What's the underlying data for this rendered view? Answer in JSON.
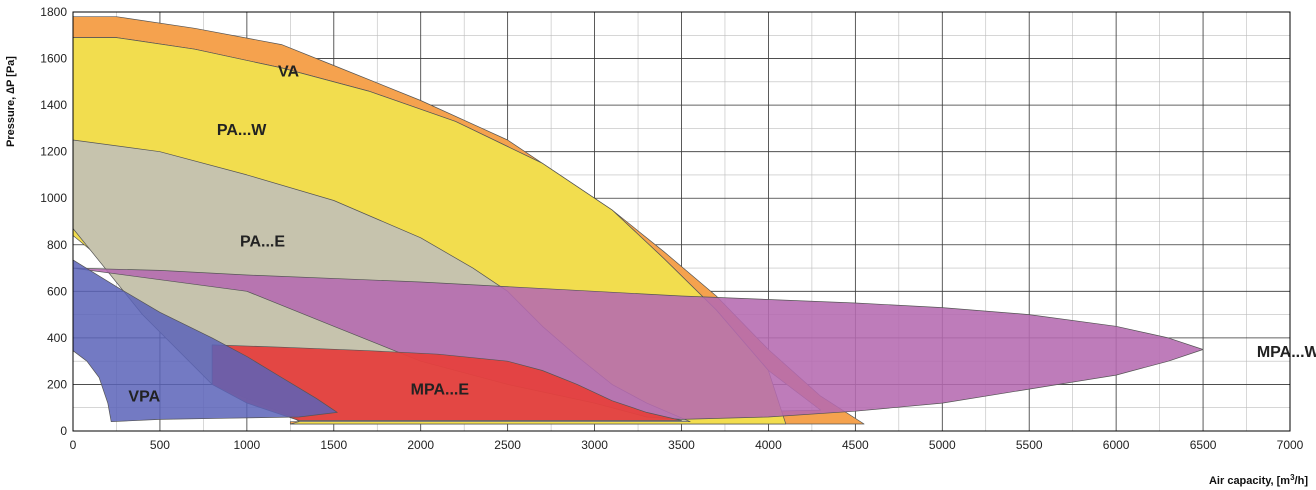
{
  "chart_data": {
    "type": "area",
    "ylabel": "Pressure, ∆P [Pa]",
    "xlabel": "Air capacity, [m³/h]",
    "xlim": [
      0,
      7000
    ],
    "ylim": [
      0,
      1800
    ],
    "x_ticks": [
      0,
      500,
      1000,
      1500,
      2000,
      2500,
      3000,
      3500,
      4000,
      4500,
      5000,
      5500,
      6000,
      6500,
      7000
    ],
    "y_ticks": [
      0,
      200,
      400,
      600,
      800,
      1000,
      1200,
      1400,
      1600,
      1800
    ],
    "x_minor_step": 250,
    "y_minor_step": 100,
    "grid": true,
    "legend": "none",
    "series": [
      {
        "name": "VA",
        "color": "#f5a24e",
        "opacity": 1,
        "label_at": [
          1240,
          1540
        ],
        "points": [
          [
            0,
            1780
          ],
          [
            250,
            1780
          ],
          [
            700,
            1730
          ],
          [
            1200,
            1660
          ],
          [
            1500,
            1570
          ],
          [
            2000,
            1420
          ],
          [
            2500,
            1250
          ],
          [
            2800,
            1100
          ],
          [
            3100,
            950
          ],
          [
            3400,
            770
          ],
          [
            3700,
            580
          ],
          [
            4000,
            350
          ],
          [
            4300,
            150
          ],
          [
            4550,
            30
          ],
          [
            1250,
            30
          ],
          [
            1250,
            40
          ],
          [
            4300,
            90
          ],
          [
            4000,
            260
          ],
          [
            3700,
            520
          ],
          [
            3400,
            740
          ],
          [
            3100,
            950
          ],
          [
            2700,
            1150
          ],
          [
            2200,
            1330
          ],
          [
            1700,
            1460
          ],
          [
            1200,
            1560
          ],
          [
            700,
            1640
          ],
          [
            250,
            1690
          ],
          [
            0,
            1690
          ]
        ]
      },
      {
        "name": "PA...W",
        "color": "#f2dd4e",
        "opacity": 1,
        "label_at": [
          970,
          1290
        ],
        "points": [
          [
            0,
            1690
          ],
          [
            250,
            1690
          ],
          [
            700,
            1640
          ],
          [
            1200,
            1560
          ],
          [
            1700,
            1460
          ],
          [
            2200,
            1330
          ],
          [
            2700,
            1150
          ],
          [
            3100,
            950
          ],
          [
            3400,
            740
          ],
          [
            3700,
            520
          ],
          [
            4000,
            260
          ],
          [
            4100,
            30
          ],
          [
            1250,
            30
          ],
          [
            1300,
            40
          ],
          [
            0,
            840
          ]
        ]
      },
      {
        "name": "PA...E",
        "color": "#c6c3ad",
        "opacity": 1,
        "label_at": [
          1090,
          810
        ],
        "points": [
          [
            0,
            1250
          ],
          [
            500,
            1200
          ],
          [
            1000,
            1100
          ],
          [
            1500,
            990
          ],
          [
            2000,
            830
          ],
          [
            2300,
            700
          ],
          [
            2500,
            600
          ],
          [
            2700,
            450
          ],
          [
            2900,
            320
          ],
          [
            3100,
            200
          ],
          [
            3300,
            120
          ],
          [
            3550,
            40
          ],
          [
            1300,
            40
          ],
          [
            1300,
            50
          ],
          [
            800,
            200
          ],
          [
            400,
            500
          ],
          [
            0,
            870
          ]
        ]
      },
      {
        "name": "MPA...W",
        "color": "#b56ab0",
        "opacity": 0.88,
        "label_at": [
          6990,
          335
        ],
        "points": [
          [
            0,
            700
          ],
          [
            500,
            690
          ],
          [
            1000,
            670
          ],
          [
            2000,
            640
          ],
          [
            3000,
            600
          ],
          [
            3500,
            580
          ],
          [
            4000,
            565
          ],
          [
            4500,
            550
          ],
          [
            5000,
            530
          ],
          [
            5500,
            500
          ],
          [
            6000,
            450
          ],
          [
            6300,
            400
          ],
          [
            6500,
            350
          ],
          [
            6300,
            300
          ],
          [
            6000,
            240
          ],
          [
            5500,
            180
          ],
          [
            5000,
            120
          ],
          [
            4500,
            85
          ],
          [
            4000,
            60
          ],
          [
            3500,
            50
          ],
          [
            3300,
            60
          ],
          [
            3000,
            120
          ],
          [
            2500,
            200
          ],
          [
            2000,
            300
          ],
          [
            1500,
            450
          ],
          [
            1000,
            600
          ],
          [
            0,
            700
          ]
        ]
      },
      {
        "name": "MPA...E",
        "color": "#e5403e",
        "opacity": 0.95,
        "label_at": [
          2110,
          175
        ],
        "points": [
          [
            800,
            370
          ],
          [
            1200,
            360
          ],
          [
            1700,
            345
          ],
          [
            2100,
            330
          ],
          [
            2500,
            300
          ],
          [
            2700,
            260
          ],
          [
            2900,
            200
          ],
          [
            3100,
            130
          ],
          [
            3300,
            80
          ],
          [
            3500,
            45
          ],
          [
            1300,
            45
          ],
          [
            1000,
            120
          ],
          [
            800,
            200
          ]
        ]
      },
      {
        "name": "VPA",
        "color": "#5b63b8",
        "opacity": 0.85,
        "label_at": [
          410,
          145
        ],
        "points": [
          [
            0,
            735
          ],
          [
            250,
            620
          ],
          [
            500,
            510
          ],
          [
            800,
            400
          ],
          [
            1000,
            320
          ],
          [
            1200,
            230
          ],
          [
            1400,
            140
          ],
          [
            1520,
            80
          ],
          [
            1300,
            60
          ],
          [
            900,
            55
          ],
          [
            500,
            50
          ],
          [
            220,
            40
          ],
          [
            200,
            120
          ],
          [
            150,
            230
          ],
          [
            80,
            300
          ],
          [
            0,
            345
          ]
        ]
      }
    ]
  }
}
